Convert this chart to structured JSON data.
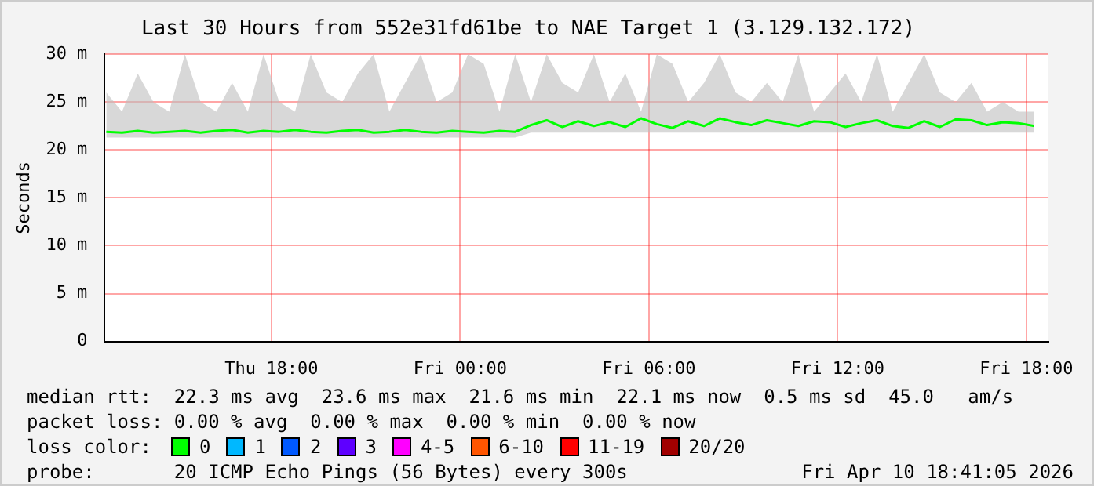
{
  "chart_data": {
    "type": "line",
    "title": "Last 30 Hours from 552e31fd61be to NAE Target 1 (3.129.132.172)",
    "ylabel": "Seconds",
    "legend_title": "loss color:",
    "legend": "bottom",
    "grid": true,
    "marker": "none",
    "line_style": "solid",
    "x": [
      "2026-04-09T12:45",
      "2026-04-09T13:15",
      "2026-04-09T13:45",
      "2026-04-09T14:15",
      "2026-04-09T14:45",
      "2026-04-09T15:15",
      "2026-04-09T15:45",
      "2026-04-09T16:15",
      "2026-04-09T16:45",
      "2026-04-09T17:15",
      "2026-04-09T17:45",
      "2026-04-09T18:15",
      "2026-04-09T18:45",
      "2026-04-09T19:15",
      "2026-04-09T19:45",
      "2026-04-09T20:15",
      "2026-04-09T20:45",
      "2026-04-09T21:15",
      "2026-04-09T21:45",
      "2026-04-09T22:15",
      "2026-04-09T22:45",
      "2026-04-09T23:15",
      "2026-04-09T23:45",
      "2026-04-10T00:15",
      "2026-04-10T00:45",
      "2026-04-10T01:15",
      "2026-04-10T01:45",
      "2026-04-10T02:15",
      "2026-04-10T02:45",
      "2026-04-10T03:15",
      "2026-04-10T03:45",
      "2026-04-10T04:15",
      "2026-04-10T04:45",
      "2026-04-10T05:15",
      "2026-04-10T05:45",
      "2026-04-10T06:15",
      "2026-04-10T06:45",
      "2026-04-10T07:15",
      "2026-04-10T07:45",
      "2026-04-10T08:15",
      "2026-04-10T08:45",
      "2026-04-10T09:15",
      "2026-04-10T09:45",
      "2026-04-10T10:15",
      "2026-04-10T10:45",
      "2026-04-10T11:15",
      "2026-04-10T11:45",
      "2026-04-10T12:15",
      "2026-04-10T12:45",
      "2026-04-10T13:15",
      "2026-04-10T13:45",
      "2026-04-10T14:15",
      "2026-04-10T14:45",
      "2026-04-10T15:15",
      "2026-04-10T15:45",
      "2026-04-10T16:15",
      "2026-04-10T16:45",
      "2026-04-10T17:15",
      "2026-04-10T17:45",
      "2026-04-10T18:15"
    ],
    "xlim": [
      "2026-04-09T12:42",
      "2026-04-10T18:42"
    ],
    "xticks": [
      {
        "value": "2026-04-09T18:00",
        "label": "Thu 18:00"
      },
      {
        "value": "2026-04-10T00:00",
        "label": "Fri 00:00"
      },
      {
        "value": "2026-04-10T06:00",
        "label": "Fri 06:00"
      },
      {
        "value": "2026-04-10T12:00",
        "label": "Fri 12:00"
      },
      {
        "value": "2026-04-10T18:00",
        "label": "Fri 18:00"
      }
    ],
    "ylim": [
      0,
      30
    ],
    "yticks": [
      0,
      {
        "value": 5,
        "label": "5 m"
      },
      {
        "value": 10,
        "label": "10 m"
      },
      {
        "value": 15,
        "label": "15 m"
      },
      {
        "value": 20,
        "label": "20 m"
      },
      {
        "value": 25,
        "label": "25 m"
      },
      {
        "value": 30,
        "label": "30 m"
      }
    ],
    "series": [
      {
        "name": "0",
        "color": "#00ff00",
        "values": [
          21.9,
          21.8,
          22.0,
          21.8,
          21.9,
          22.0,
          21.8,
          22.0,
          22.1,
          21.8,
          22.0,
          21.9,
          22.1,
          21.9,
          21.8,
          22.0,
          22.1,
          21.8,
          21.9,
          22.1,
          21.9,
          21.8,
          22.0,
          21.9,
          21.8,
          22.0,
          21.9,
          22.6,
          23.1,
          22.4,
          23.0,
          22.5,
          22.9,
          22.4,
          23.3,
          22.7,
          22.3,
          23.0,
          22.5,
          23.3,
          22.9,
          22.6,
          23.1,
          22.8,
          22.5,
          23.0,
          22.9,
          22.4,
          22.8,
          23.1,
          22.5,
          22.3,
          23.0,
          22.4,
          23.2,
          23.1,
          22.6,
          22.9,
          22.8,
          22.5
        ],
        "lower": [
          21.3,
          21.3,
          21.3,
          21.3,
          21.3,
          21.3,
          21.3,
          21.3,
          21.3,
          21.3,
          21.3,
          21.3,
          21.3,
          21.3,
          21.3,
          21.3,
          21.3,
          21.3,
          21.3,
          21.3,
          21.3,
          21.3,
          21.3,
          21.3,
          21.3,
          21.3,
          21.3,
          21.8,
          21.8,
          21.8,
          21.8,
          21.8,
          21.8,
          21.8,
          21.8,
          21.8,
          21.8,
          21.8,
          21.8,
          21.8,
          21.8,
          21.8,
          21.8,
          21.8,
          21.8,
          21.8,
          21.8,
          21.8,
          21.8,
          21.8,
          21.8,
          21.8,
          21.8,
          21.8,
          21.8,
          21.8,
          21.8,
          21.8,
          21.8,
          21.8
        ],
        "upper": [
          26,
          24,
          28,
          25,
          24,
          30,
          25,
          24,
          27,
          24,
          30,
          25,
          24,
          30,
          26,
          25,
          28,
          30,
          24,
          27,
          30,
          25,
          26,
          30,
          29,
          24,
          30,
          25,
          30,
          27,
          26,
          30,
          25,
          28,
          24,
          30,
          29,
          25,
          27,
          30,
          26,
          25,
          27,
          25,
          30,
          24,
          26,
          28,
          25,
          30,
          24,
          27,
          30,
          26,
          25,
          27,
          24,
          25,
          24,
          24
        ]
      },
      {
        "name": "1",
        "color": "#00b8ff",
        "values": [
          null,
          null,
          null,
          null,
          null,
          null,
          null,
          null,
          null,
          null,
          null,
          null,
          null,
          null,
          null,
          null,
          null,
          null,
          null,
          null,
          null,
          null,
          null,
          null,
          null,
          null,
          null,
          null,
          null,
          null,
          null,
          null,
          null,
          null,
          null,
          null,
          null,
          null,
          null,
          null,
          null,
          null,
          null,
          null,
          null,
          null,
          null,
          null,
          null,
          null,
          null,
          null,
          null,
          null,
          null,
          null,
          null,
          null,
          null,
          null
        ]
      },
      {
        "name": "2",
        "color": "#0059ff",
        "values": [
          null,
          null,
          null,
          null,
          null,
          null,
          null,
          null,
          null,
          null,
          null,
          null,
          null,
          null,
          null,
          null,
          null,
          null,
          null,
          null,
          null,
          null,
          null,
          null,
          null,
          null,
          null,
          null,
          null,
          null,
          null,
          null,
          null,
          null,
          null,
          null,
          null,
          null,
          null,
          null,
          null,
          null,
          null,
          null,
          null,
          null,
          null,
          null,
          null,
          null,
          null,
          null,
          null,
          null,
          null,
          null,
          null,
          null,
          null,
          null
        ]
      },
      {
        "name": "3",
        "color": "#5e00ff",
        "values": [
          null,
          null,
          null,
          null,
          null,
          null,
          null,
          null,
          null,
          null,
          null,
          null,
          null,
          null,
          null,
          null,
          null,
          null,
          null,
          null,
          null,
          null,
          null,
          null,
          null,
          null,
          null,
          null,
          null,
          null,
          null,
          null,
          null,
          null,
          null,
          null,
          null,
          null,
          null,
          null,
          null,
          null,
          null,
          null,
          null,
          null,
          null,
          null,
          null,
          null,
          null,
          null,
          null,
          null,
          null,
          null,
          null,
          null,
          null,
          null
        ]
      },
      {
        "name": "4-5",
        "color": "#ff00ff",
        "values": [
          null,
          null,
          null,
          null,
          null,
          null,
          null,
          null,
          null,
          null,
          null,
          null,
          null,
          null,
          null,
          null,
          null,
          null,
          null,
          null,
          null,
          null,
          null,
          null,
          null,
          null,
          null,
          null,
          null,
          null,
          null,
          null,
          null,
          null,
          null,
          null,
          null,
          null,
          null,
          null,
          null,
          null,
          null,
          null,
          null,
          null,
          null,
          null,
          null,
          null,
          null,
          null,
          null,
          null,
          null,
          null,
          null,
          null,
          null,
          null
        ]
      },
      {
        "name": "6-10",
        "color": "#ff5500",
        "values": [
          null,
          null,
          null,
          null,
          null,
          null,
          null,
          null,
          null,
          null,
          null,
          null,
          null,
          null,
          null,
          null,
          null,
          null,
          null,
          null,
          null,
          null,
          null,
          null,
          null,
          null,
          null,
          null,
          null,
          null,
          null,
          null,
          null,
          null,
          null,
          null,
          null,
          null,
          null,
          null,
          null,
          null,
          null,
          null,
          null,
          null,
          null,
          null,
          null,
          null,
          null,
          null,
          null,
          null,
          null,
          null,
          null,
          null,
          null,
          null
        ]
      },
      {
        "name": "11-19",
        "color": "#ff0000",
        "values": [
          null,
          null,
          null,
          null,
          null,
          null,
          null,
          null,
          null,
          null,
          null,
          null,
          null,
          null,
          null,
          null,
          null,
          null,
          null,
          null,
          null,
          null,
          null,
          null,
          null,
          null,
          null,
          null,
          null,
          null,
          null,
          null,
          null,
          null,
          null,
          null,
          null,
          null,
          null,
          null,
          null,
          null,
          null,
          null,
          null,
          null,
          null,
          null,
          null,
          null,
          null,
          null,
          null,
          null,
          null,
          null,
          null,
          null,
          null,
          null
        ]
      },
      {
        "name": "20/20",
        "color": "#a10000",
        "values": [
          null,
          null,
          null,
          null,
          null,
          null,
          null,
          null,
          null,
          null,
          null,
          null,
          null,
          null,
          null,
          null,
          null,
          null,
          null,
          null,
          null,
          null,
          null,
          null,
          null,
          null,
          null,
          null,
          null,
          null,
          null,
          null,
          null,
          null,
          null,
          null,
          null,
          null,
          null,
          null,
          null,
          null,
          null,
          null,
          null,
          null,
          null,
          null,
          null,
          null,
          null,
          null,
          null,
          null,
          null,
          null,
          null,
          null,
          null,
          null
        ]
      }
    ],
    "annotations": [
      "median rtt:  22.3 ms avg  23.6 ms max  21.6 ms min  22.1 ms now  0.5 ms sd  45.0   am/s",
      "packet loss: 0.00 % avg  0.00 % max  0.00 % min  0.00 % now",
      "probe:       20 ICMP Echo Pings (56 Bytes) every 300s",
      "Fri Apr 10 18:41:05 2026"
    ]
  }
}
